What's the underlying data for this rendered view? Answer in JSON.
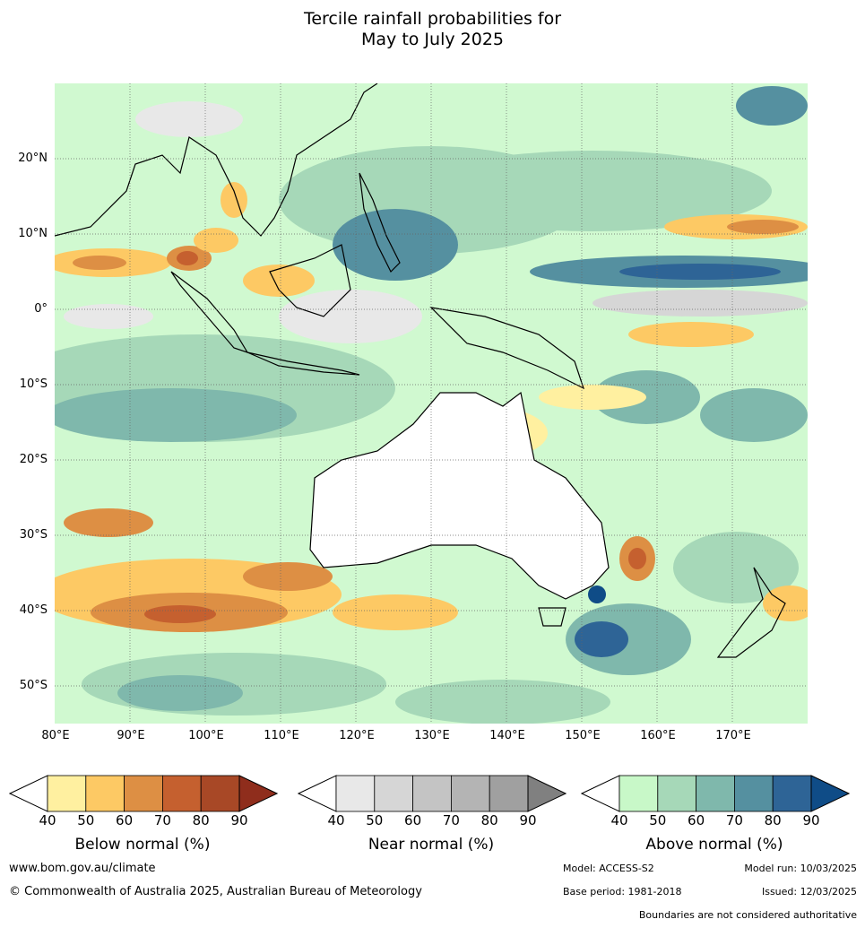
{
  "title": {
    "line1": "Tercile rainfall probabilities for",
    "line2": "May to July 2025"
  },
  "axes": {
    "lat_labels": [
      "20°N",
      "10°N",
      "0°",
      "10°S",
      "20°S",
      "30°S",
      "40°S",
      "50°S"
    ],
    "lon_labels": [
      "80°E",
      "90°E",
      "100°E",
      "110°E",
      "120°E",
      "130°E",
      "140°E",
      "150°E",
      "160°E",
      "170°E"
    ]
  },
  "colorbars": [
    {
      "label": "Below normal (%)",
      "ticks": [
        "40",
        "50",
        "60",
        "70",
        "80",
        "90"
      ],
      "colors": [
        "#ffffff",
        "#fff0a0",
        "#fdc964",
        "#dd8f44",
        "#c5602f",
        "#a84826",
        "#8f2d1c"
      ]
    },
    {
      "label": "Near normal (%)",
      "ticks": [
        "40",
        "50",
        "60",
        "70",
        "80",
        "90"
      ],
      "colors": [
        "#ffffff",
        "#e8e8e8",
        "#d6d6d6",
        "#c4c4c4",
        "#b4b4b4",
        "#a0a0a0",
        "#808080"
      ]
    },
    {
      "label": "Above normal (%)",
      "ticks": [
        "40",
        "50",
        "60",
        "70",
        "80",
        "90"
      ],
      "colors": [
        "#ffffff",
        "#c8f8c8",
        "#a6d8b8",
        "#7fb8ac",
        "#5590a0",
        "#2e6496",
        "#0f4c87"
      ]
    }
  ],
  "footer": {
    "website": "www.bom.gov.au/climate",
    "copyright": "© Commonwealth of Australia 2025, Australian Bureau of Meteorology",
    "model": "Model: ACCESS-S2",
    "model_run": "Model run: 10/03/2025",
    "base_period": "Base period: 1981-2018",
    "issued": "Issued: 12/03/2025",
    "boundaries_note": "Boundaries are not considered authoritative"
  }
}
